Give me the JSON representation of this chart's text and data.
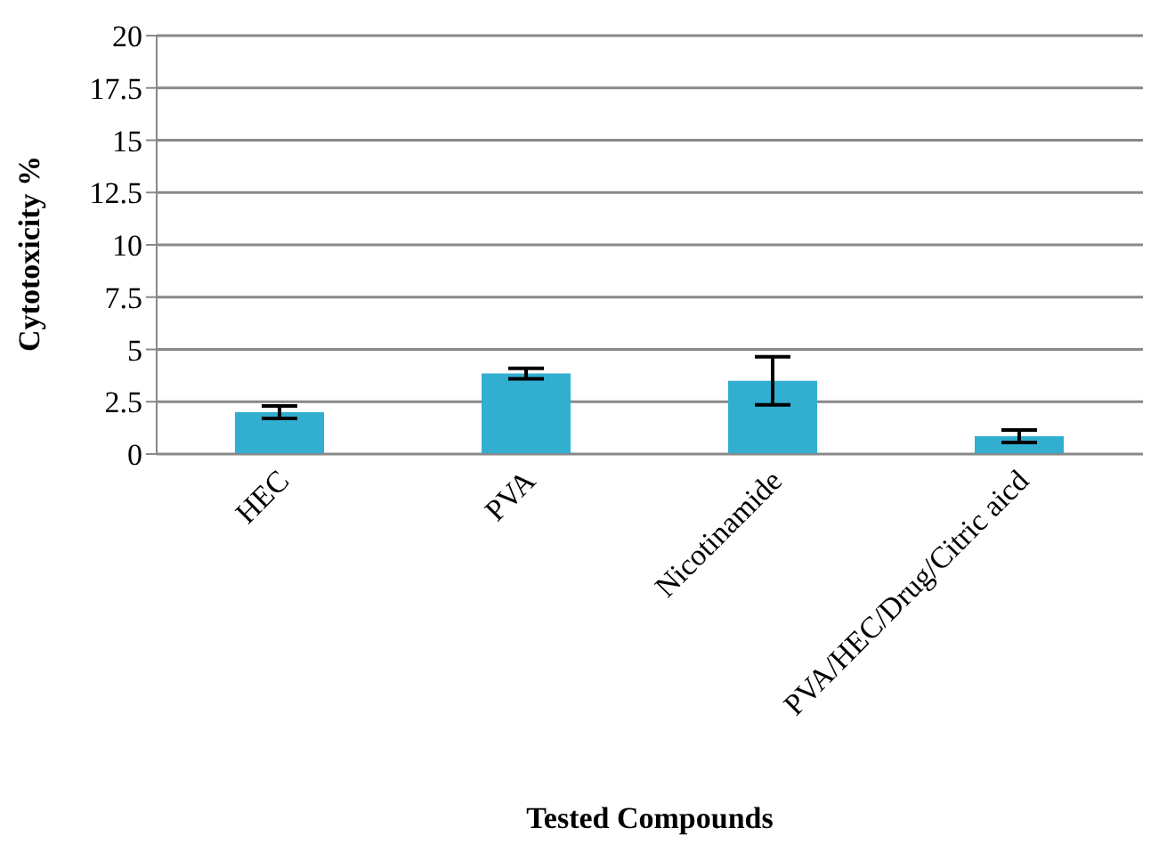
{
  "chart_data": {
    "type": "bar",
    "xlabel": "Tested Compounds",
    "ylabel": "Cytotoxicity %",
    "categories": [
      "HEC",
      "PVA",
      "Nicotinamide",
      "PVA/HEC/Drug/Citric aicd"
    ],
    "values": [
      2.0,
      3.85,
      3.5,
      0.85
    ],
    "errors": [
      0.3,
      0.25,
      1.15,
      0.3
    ],
    "color": "#31aed0",
    "ylim": [
      0,
      20
    ],
    "yticks": [
      0,
      2.5,
      5,
      7.5,
      10,
      12.5,
      15,
      17.5,
      20
    ],
    "grid": "y",
    "legend": false
  }
}
